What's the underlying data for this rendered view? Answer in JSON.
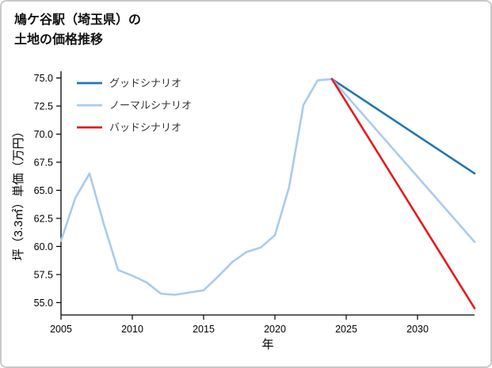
{
  "page": {
    "title_line1": "鳩ケ谷駅（埼玉県）の",
    "title_line2": "土地の価格推移"
  },
  "chart_data": {
    "type": "line",
    "title": "鳩ケ谷駅（埼玉県）の土地の価格推移",
    "xlabel": "年",
    "ylabel": "坪（3.3㎡）単価（万円）",
    "xlim": [
      2005,
      2034
    ],
    "ylim": [
      53.9,
      75.6
    ],
    "x_ticks": [
      "2005",
      "2010",
      "2015",
      "2020",
      "2025",
      "2030"
    ],
    "y_ticks": [
      "55.0",
      "57.5",
      "60.0",
      "62.5",
      "65.0",
      "67.5",
      "70.0",
      "72.5",
      "75.0"
    ],
    "grid": false,
    "legend_position": "upper-left",
    "axis_color": "#000000",
    "legend": [
      {
        "label": "グッドシナリオ",
        "color": "#1f77b4"
      },
      {
        "label": "ノーマルシナリオ",
        "color": "#a8cbee"
      },
      {
        "label": "バッドシナリオ",
        "color": "#e41a1c"
      }
    ],
    "series": [
      {
        "name": "history",
        "color": "#a8cbee",
        "x": [
          2005,
          2006,
          2007,
          2008,
          2009,
          2010,
          2011,
          2012,
          2013,
          2014,
          2015,
          2016,
          2017,
          2018,
          2019,
          2020,
          2021,
          2022,
          2023,
          2024
        ],
        "values": [
          60.5,
          64.3,
          66.5,
          62.0,
          57.9,
          57.4,
          56.8,
          55.8,
          55.7,
          55.9,
          56.1,
          57.3,
          58.6,
          59.5,
          59.9,
          61.0,
          65.3,
          72.6,
          74.8,
          74.9
        ]
      },
      {
        "name": "グッドシナリオ",
        "color": "#1f77b4",
        "x": [
          2024,
          2034
        ],
        "values": [
          74.9,
          66.5
        ]
      },
      {
        "name": "ノーマルシナリオ",
        "color": "#a8cbee",
        "x": [
          2024,
          2034
        ],
        "values": [
          74.9,
          60.4
        ]
      },
      {
        "name": "バッドシナリオ",
        "color": "#e41a1c",
        "x": [
          2024,
          2034
        ],
        "values": [
          74.9,
          54.5
        ]
      }
    ]
  }
}
